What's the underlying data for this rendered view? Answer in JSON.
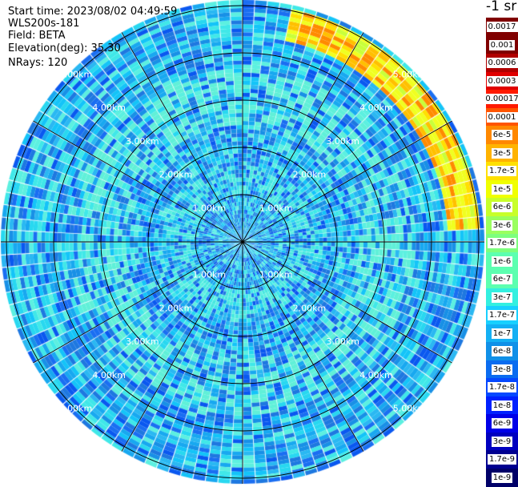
{
  "chart_data": {
    "type": "heatmap",
    "subtype": "polar-ppi",
    "info": {
      "start_time": "Start time: 2023/08/02 04:49:59",
      "instrument": "WLS200s-181",
      "field": "Field: BETA",
      "elevation": "Elevation(deg): 35.30",
      "nrays": "NRays: 120"
    },
    "unit_label": "-1 sr",
    "n_rays": 120,
    "range_rings_km": [
      1,
      2,
      3,
      4,
      5
    ],
    "ring_labels": [
      "1.00km",
      "2.00km",
      "3.00km",
      "4.00km",
      "5.00km"
    ],
    "azimuth_spokes_deg": [
      0,
      30,
      60,
      90,
      120,
      150,
      180,
      210,
      240,
      270,
      300,
      330
    ],
    "legend": {
      "colors": [
        "#800000",
        "#b00000",
        "#e00000",
        "#ff1a00",
        "#ff5500",
        "#ff8800",
        "#ffb300",
        "#ffe000",
        "#f0ff00",
        "#c8ff2a",
        "#9aff5e",
        "#7dff7d",
        "#5cffb0",
        "#33f0e0",
        "#18d0ff",
        "#14b0f4",
        "#1090e8",
        "#0a6cf0",
        "#0548ff",
        "#0020ff",
        "#0000e8",
        "#0000c0",
        "#000090",
        "#000068"
      ],
      "labels": [
        "0.0017",
        "0.001",
        "0.0006",
        "0.0003",
        "0.00017",
        "0.0001",
        "6e-5",
        "3e-5",
        "1.7e-5",
        "1e-5",
        "6e-6",
        "3e-6",
        "1.7e-6",
        "1e-6",
        "6e-7",
        "3e-7",
        "1.7e-7",
        "1e-7",
        "6e-8",
        "3e-8",
        "1.7e-8",
        "1e-8",
        "6e-9",
        "3e-9",
        "1.7e-9",
        "1e-9"
      ]
    }
  }
}
